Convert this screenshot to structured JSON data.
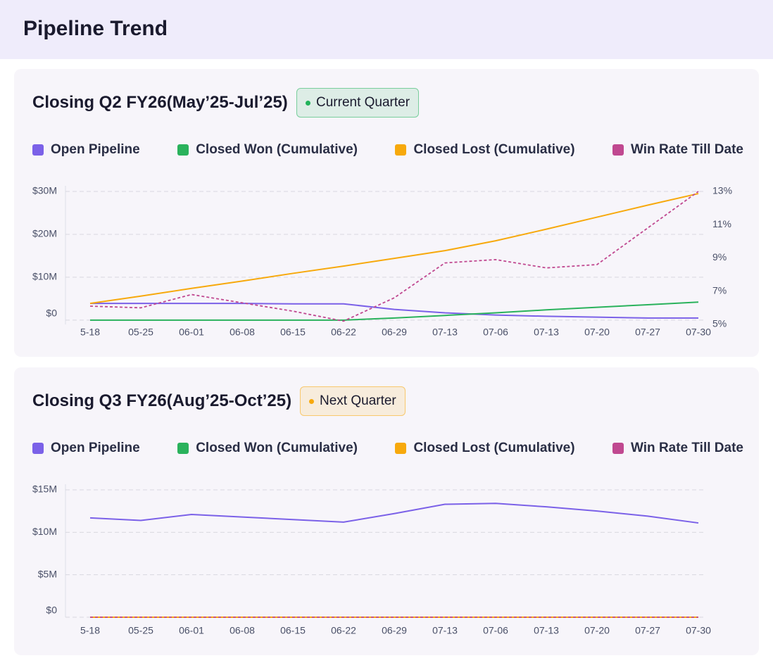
{
  "header": {
    "title": "Pipeline Trend"
  },
  "chart_data": [
    {
      "type": "line",
      "title": "Closing Q2 FY26(May’25-Jul’25)",
      "badge": "Current Quarter",
      "badge_color": "#22b35a",
      "categories": [
        "5-18",
        "05-25",
        "06-01",
        "06-08",
        "06-15",
        "06-22",
        "06-29",
        "07-13",
        "07-06",
        "07-13",
        "07-20",
        "07-27",
        "07-30"
      ],
      "series": [
        {
          "name": "Open Pipeline",
          "color": "#7b61e8",
          "values": [
            3.9,
            3.9,
            3.9,
            3.9,
            3.8,
            3.8,
            2.5,
            1.7,
            1.2,
            0.9,
            0.7,
            0.5,
            0.5
          ]
        },
        {
          "name": "Closed Won (Cumulative)",
          "color": "#2ab25c",
          "values": [
            0,
            0,
            0,
            0,
            0,
            0,
            0.5,
            1.1,
            1.7,
            2.4,
            3.0,
            3.6,
            4.2
          ]
        },
        {
          "name": "Closed Lost (Cumulative)",
          "color": "#f7a90c",
          "values": [
            3.9,
            5.6,
            7.4,
            9.1,
            10.9,
            12.6,
            14.4,
            16.2,
            18.5,
            21.2,
            24.0,
            26.8,
            29.5
          ]
        },
        {
          "name": "Win Rate Till Date",
          "color": "#c04890",
          "axis": "y2",
          "dashed": true,
          "values": [
            6.1,
            6.0,
            6.8,
            6.3,
            5.8,
            5.2,
            6.6,
            8.7,
            8.9,
            8.4,
            8.6,
            10.8,
            13
          ]
        }
      ],
      "ylim": [
        -1,
        30
      ],
      "yticks": [
        {
          "value": 0,
          "label": "$0"
        },
        {
          "value": 10,
          "label": "$10M"
        },
        {
          "value": 20,
          "label": "$20M"
        },
        {
          "value": 30,
          "label": "$30M"
        }
      ],
      "y2lim": [
        5,
        13
      ],
      "y2ticks": [
        {
          "value": 5,
          "label": "5%"
        },
        {
          "value": 7,
          "label": "7%"
        },
        {
          "value": 9,
          "label": "9%"
        },
        {
          "value": 11,
          "label": "11%"
        },
        {
          "value": 13,
          "label": "13%"
        }
      ],
      "grid": true
    },
    {
      "type": "line",
      "title": "Closing Q3 FY26(Aug’25-Oct’25)",
      "badge": "Next Quarter",
      "badge_color": "#f7a90c",
      "categories": [
        "5-18",
        "05-25",
        "06-01",
        "06-08",
        "06-15",
        "06-22",
        "06-29",
        "07-13",
        "07-06",
        "07-13",
        "07-20",
        "07-27",
        "07-30"
      ],
      "series": [
        {
          "name": "Open Pipeline",
          "color": "#7b61e8",
          "values": [
            11.7,
            11.4,
            12.1,
            11.8,
            11.5,
            11.2,
            12.2,
            13.3,
            13.4,
            13.0,
            12.5,
            11.9,
            11.1
          ]
        },
        {
          "name": "Closed Won (Cumulative)",
          "color": "#2ab25c",
          "values": [
            0,
            0,
            0,
            0,
            0,
            0,
            0,
            0,
            0,
            0,
            0,
            0,
            0
          ]
        },
        {
          "name": "Closed Lost (Cumulative)",
          "color": "#f7a90c",
          "values": [
            0,
            0,
            0,
            0,
            0,
            0,
            0,
            0,
            0,
            0,
            0,
            0,
            0
          ]
        },
        {
          "name": "Win Rate Till Date",
          "color": "#c04890",
          "dashed": true,
          "values": [
            0,
            0,
            0,
            0,
            0,
            0,
            0,
            0,
            0,
            0,
            0,
            0,
            0
          ]
        }
      ],
      "ylim": [
        0,
        15
      ],
      "yticks": [
        {
          "value": 0,
          "label": "$0"
        },
        {
          "value": 5,
          "label": "$5M"
        },
        {
          "value": 10,
          "label": "$10M"
        },
        {
          "value": 15,
          "label": "$15M"
        }
      ],
      "grid": true
    }
  ]
}
